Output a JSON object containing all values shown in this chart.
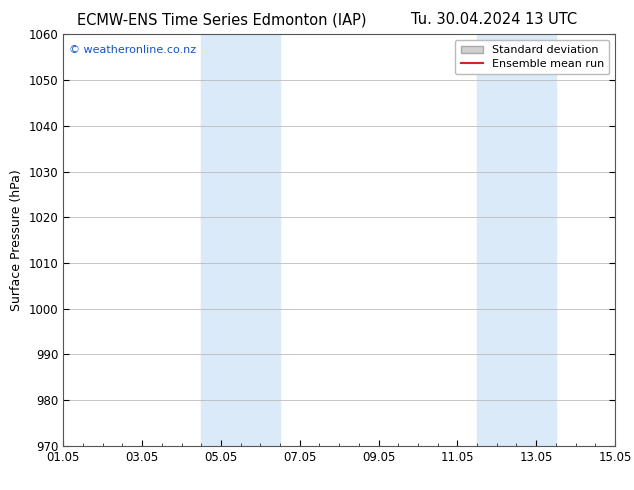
{
  "title_left": "ECMW-ENS Time Series Edmonton (IAP)",
  "title_right": "Tu. 30.04.2024 13 UTC",
  "ylabel": "Surface Pressure (hPa)",
  "ylim": [
    970,
    1060
  ],
  "yticks": [
    970,
    980,
    990,
    1000,
    1010,
    1020,
    1030,
    1040,
    1050,
    1060
  ],
  "xlim_start": 0,
  "xlim_end": 14,
  "xtick_labels": [
    "01.05",
    "03.05",
    "05.05",
    "07.05",
    "09.05",
    "11.05",
    "13.05",
    "15.05"
  ],
  "xtick_positions": [
    0,
    2,
    4,
    6,
    8,
    10,
    12,
    14
  ],
  "shaded_regions": [
    {
      "x_start": 3.5,
      "x_end": 5.5,
      "color": "#daeaf8"
    },
    {
      "x_start": 10.5,
      "x_end": 12.5,
      "color": "#daeaf8"
    }
  ],
  "watermark_text": "© weatheronline.co.nz",
  "watermark_color": "#1155cc",
  "legend_std_dev_color": "#d0d0d0",
  "legend_std_dev_edge": "#aaaaaa",
  "legend_mean_color": "#dd2222",
  "background_color": "#ffffff",
  "grid_color": "#bbbbbb",
  "spine_color": "#555555",
  "title_fontsize": 10.5,
  "tick_fontsize": 8.5,
  "ylabel_fontsize": 9,
  "watermark_fontsize": 8,
  "legend_fontsize": 8
}
